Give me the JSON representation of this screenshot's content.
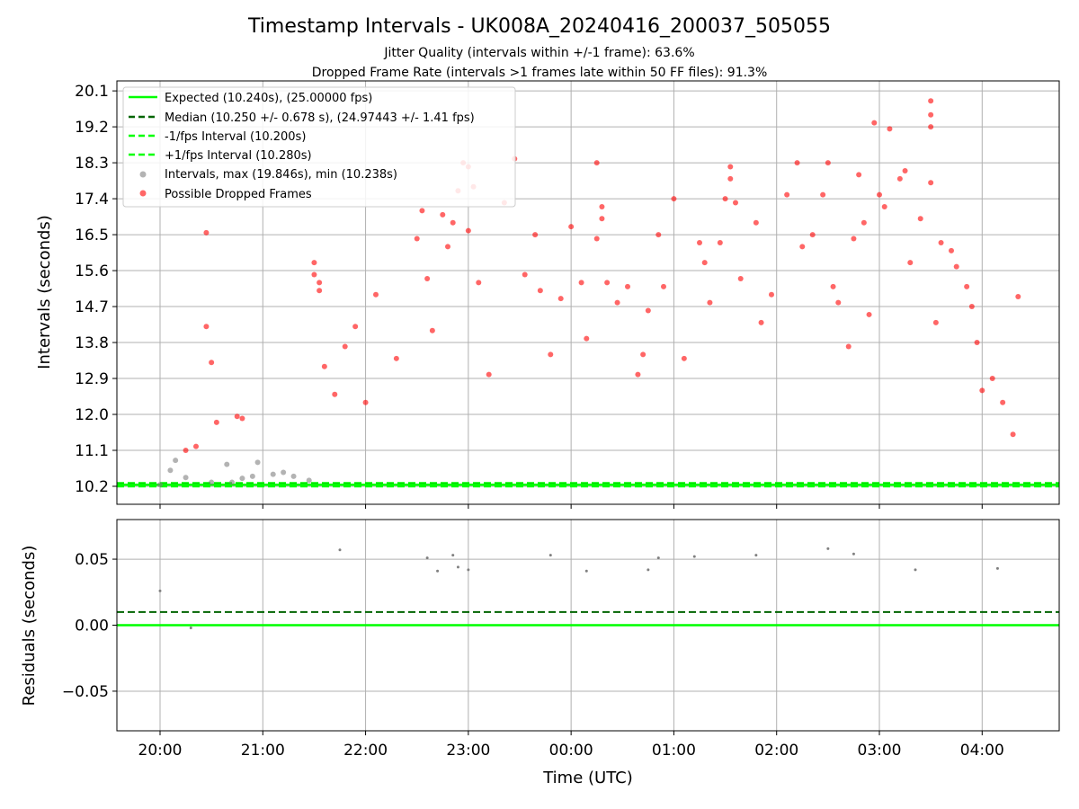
{
  "chart_data": [
    {
      "type": "scatter",
      "title": "Timestamp Intervals - UK008A_20240416_200037_505055",
      "subtitle_1": "Jitter Quality (intervals within +/-1 frame): 63.6%",
      "subtitle_2": "Dropped Frame Rate (intervals >1 frames late within 50 FF files): 91.3%",
      "ylabel": "Intervals (seconds)",
      "xlabel": "",
      "yticks": [
        "10.2",
        "11.1",
        "12.0",
        "12.9",
        "13.8",
        "14.7",
        "15.6",
        "16.5",
        "17.4",
        "18.3",
        "19.2",
        "20.1"
      ],
      "ylim": [
        9.75,
        20.35
      ],
      "xticks": [
        "20:00",
        "21:00",
        "22:00",
        "23:00",
        "00:00",
        "01:00",
        "02:00",
        "03:00",
        "04:00"
      ],
      "xlim_hours": [
        19.58,
        28.75
      ],
      "grid": true,
      "legend_position": "upper-left",
      "legend": [
        "Expected (10.240s), (25.00000 fps)",
        "Median (10.250 +/- 0.678 s), (24.97443 +/- 1.41 fps)",
        "-1/fps Interval (10.200s)",
        "+1/fps Interval (10.280s)",
        "Intervals, max (19.846s), min (10.238s)",
        "Possible Dropped Frames"
      ],
      "reference_lines": {
        "expected": 10.24,
        "median": 10.25,
        "minus_one_frame": 10.2,
        "plus_one_frame": 10.28
      },
      "colors": {
        "expected": "#00ff00",
        "median": "#006400",
        "bounds": "#00ff00",
        "intervals": "#808080",
        "dropped": "#ff0000"
      },
      "series": [
        {
          "name": "Intervals, max (19.846s), min (10.238s)",
          "points": [
            [
              20.0,
              10.24
            ],
            [
              20.1,
              10.6
            ],
            [
              20.15,
              10.85
            ],
            [
              20.25,
              10.42
            ],
            [
              20.5,
              10.3
            ],
            [
              20.65,
              10.75
            ],
            [
              20.7,
              10.3
            ],
            [
              20.8,
              10.4
            ],
            [
              20.9,
              10.45
            ],
            [
              20.95,
              10.8
            ],
            [
              21.1,
              10.5
            ],
            [
              21.2,
              10.55
            ],
            [
              21.3,
              10.45
            ],
            [
              21.45,
              10.35
            ]
          ]
        },
        {
          "name": "Possible Dropped Frames",
          "points": [
            [
              20.25,
              11.1
            ],
            [
              20.35,
              11.2
            ],
            [
              20.45,
              16.55
            ],
            [
              20.45,
              14.2
            ],
            [
              20.5,
              13.3
            ],
            [
              20.55,
              11.8
            ],
            [
              20.75,
              11.95
            ],
            [
              20.8,
              11.9
            ],
            [
              21.5,
              15.8
            ],
            [
              21.5,
              15.5
            ],
            [
              21.55,
              15.3
            ],
            [
              21.55,
              15.1
            ],
            [
              21.6,
              13.2
            ],
            [
              21.7,
              12.5
            ],
            [
              21.8,
              13.7
            ],
            [
              21.9,
              14.2
            ],
            [
              22.0,
              12.3
            ],
            [
              22.1,
              15.0
            ],
            [
              22.3,
              13.4
            ],
            [
              22.5,
              16.4
            ],
            [
              22.55,
              17.1
            ],
            [
              22.6,
              15.4
            ],
            [
              22.65,
              14.1
            ],
            [
              22.75,
              17.0
            ],
            [
              22.8,
              16.2
            ],
            [
              22.85,
              16.8
            ],
            [
              22.9,
              17.6
            ],
            [
              22.95,
              18.3
            ],
            [
              23.0,
              16.6
            ],
            [
              23.0,
              18.2
            ],
            [
              23.05,
              17.7
            ],
            [
              23.1,
              15.3
            ],
            [
              23.2,
              13.0
            ],
            [
              23.35,
              17.3
            ],
            [
              23.45,
              18.4
            ],
            [
              23.55,
              15.5
            ],
            [
              23.65,
              16.5
            ],
            [
              23.7,
              15.1
            ],
            [
              23.8,
              13.5
            ],
            [
              23.9,
              14.9
            ],
            [
              24.0,
              16.7
            ],
            [
              24.1,
              15.3
            ],
            [
              24.15,
              13.9
            ],
            [
              24.25,
              18.3
            ],
            [
              24.25,
              16.4
            ],
            [
              24.3,
              16.9
            ],
            [
              24.3,
              17.2
            ],
            [
              24.35,
              15.3
            ],
            [
              24.45,
              14.8
            ],
            [
              24.55,
              15.2
            ],
            [
              24.65,
              13.0
            ],
            [
              24.7,
              13.5
            ],
            [
              24.75,
              14.6
            ],
            [
              24.85,
              16.5
            ],
            [
              24.9,
              15.2
            ],
            [
              25.0,
              17.4
            ],
            [
              25.1,
              13.4
            ],
            [
              25.25,
              16.3
            ],
            [
              25.3,
              15.8
            ],
            [
              25.35,
              14.8
            ],
            [
              25.45,
              16.3
            ],
            [
              25.5,
              17.4
            ],
            [
              25.55,
              17.9
            ],
            [
              25.55,
              18.2
            ],
            [
              25.6,
              17.3
            ],
            [
              25.65,
              15.4
            ],
            [
              25.8,
              16.8
            ],
            [
              25.85,
              14.3
            ],
            [
              25.95,
              15.0
            ],
            [
              26.1,
              17.5
            ],
            [
              26.2,
              18.3
            ],
            [
              26.25,
              16.2
            ],
            [
              26.35,
              16.5
            ],
            [
              26.45,
              17.5
            ],
            [
              26.5,
              18.3
            ],
            [
              26.55,
              15.2
            ],
            [
              26.6,
              14.8
            ],
            [
              26.7,
              13.7
            ],
            [
              26.75,
              16.4
            ],
            [
              26.8,
              18.0
            ],
            [
              26.85,
              16.8
            ],
            [
              26.9,
              14.5
            ],
            [
              26.95,
              19.3
            ],
            [
              27.0,
              17.5
            ],
            [
              27.05,
              17.2
            ],
            [
              27.1,
              19.15
            ],
            [
              27.2,
              17.9
            ],
            [
              27.25,
              18.1
            ],
            [
              27.3,
              15.8
            ],
            [
              27.4,
              16.9
            ],
            [
              27.5,
              17.8
            ],
            [
              27.5,
              19.85
            ],
            [
              27.5,
              19.5
            ],
            [
              27.5,
              19.2
            ],
            [
              27.55,
              14.3
            ],
            [
              27.6,
              16.3
            ],
            [
              27.7,
              16.1
            ],
            [
              27.75,
              15.7
            ],
            [
              27.85,
              15.2
            ],
            [
              27.9,
              14.7
            ],
            [
              27.95,
              13.8
            ],
            [
              28.0,
              12.6
            ],
            [
              28.1,
              12.9
            ],
            [
              28.2,
              12.3
            ],
            [
              28.3,
              11.5
            ],
            [
              28.35,
              14.95
            ]
          ]
        }
      ]
    },
    {
      "type": "scatter",
      "ylabel": "Residuals (seconds)",
      "xlabel": "Time (UTC)",
      "yticks": [
        "−0.05",
        "0.00",
        "0.05"
      ],
      "ylim": [
        -0.08,
        0.08
      ],
      "xticks": [
        "20:00",
        "21:00",
        "22:00",
        "23:00",
        "00:00",
        "01:00",
        "02:00",
        "03:00",
        "04:00"
      ],
      "grid": true,
      "reference_lines": {
        "zero": 0.0,
        "median_offset": 0.01
      },
      "colors": {
        "zero": "#00ff00",
        "median_offset": "#006400",
        "points": "#808080"
      },
      "series": [
        {
          "name": "Residuals",
          "points": [
            [
              20.0,
              0.026
            ],
            [
              20.3,
              -0.002
            ],
            [
              21.75,
              0.057
            ],
            [
              22.6,
              0.051
            ],
            [
              22.7,
              0.041
            ],
            [
              22.85,
              0.053
            ],
            [
              22.9,
              0.044
            ],
            [
              23.0,
              0.042
            ],
            [
              23.8,
              0.053
            ],
            [
              24.15,
              0.041
            ],
            [
              24.75,
              0.042
            ],
            [
              24.85,
              0.051
            ],
            [
              25.2,
              0.052
            ],
            [
              25.8,
              0.053
            ],
            [
              26.5,
              0.058
            ],
            [
              26.75,
              0.054
            ],
            [
              27.35,
              0.042
            ],
            [
              28.15,
              0.043
            ]
          ]
        }
      ]
    }
  ]
}
